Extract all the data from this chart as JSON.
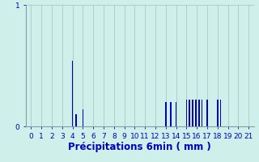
{
  "xlabel": "Précipitations 6min ( mm )",
  "background_color": "#cff0ea",
  "bar_color": "#0000bb",
  "grid_color": "#aac8c4",
  "spine_color": "#8899aa",
  "ylim": [
    0,
    1.0
  ],
  "xlim": [
    -0.5,
    21.5
  ],
  "yticks": [
    0,
    1
  ],
  "xticks": [
    0,
    1,
    2,
    3,
    4,
    5,
    6,
    7,
    8,
    9,
    10,
    11,
    12,
    13,
    14,
    15,
    16,
    17,
    18,
    19,
    20,
    21
  ],
  "bars": [
    [
      4.0,
      0.54
    ],
    [
      4.35,
      0.1
    ],
    [
      5.0,
      0.14
    ],
    [
      13.0,
      0.2
    ],
    [
      13.5,
      0.2
    ],
    [
      14.0,
      0.2
    ],
    [
      15.0,
      0.22
    ],
    [
      15.3,
      0.22
    ],
    [
      15.6,
      0.22
    ],
    [
      15.9,
      0.22
    ],
    [
      16.2,
      0.22
    ],
    [
      16.5,
      0.22
    ],
    [
      17.0,
      0.22
    ],
    [
      18.0,
      0.22
    ],
    [
      18.3,
      0.22
    ]
  ],
  "bar_width": 0.12,
  "tick_fontsize": 6.5,
  "xlabel_fontsize": 8.5
}
